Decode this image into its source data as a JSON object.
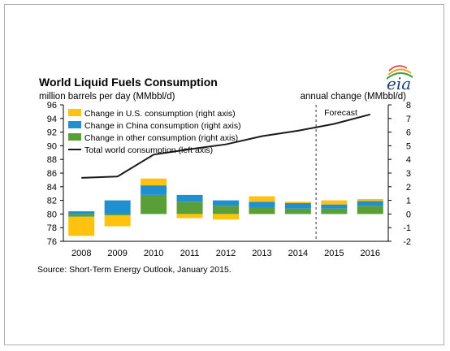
{
  "logo_text": "eia",
  "source": "Source: Short-Term Energy Outlook, January 2015.",
  "forecast_label": "Forecast",
  "colors": {
    "us": "#ffc20e",
    "china": "#1f8fd0",
    "other": "#5a9e3a",
    "total": "#1a1a1a",
    "logo": "#1a3e78"
  },
  "chart_data": {
    "type": "bar",
    "title": "World Liquid Fuels Consumption",
    "left_axis_label": "million barrels per day (MMbbl/d)",
    "right_axis_label": "annual change (MMbbl/d)",
    "categories": [
      "2008",
      "2009",
      "2010",
      "2011",
      "2012",
      "2013",
      "2014",
      "2015",
      "2016"
    ],
    "left_ylim": [
      76,
      96
    ],
    "left_ticks": [
      "96",
      "94",
      "92",
      "90",
      "88",
      "86",
      "84",
      "82",
      "80",
      "78",
      "76"
    ],
    "right_ylim": [
      -2,
      8
    ],
    "right_ticks": [
      "8",
      "7",
      "6",
      "5",
      "4",
      "3",
      "2",
      "1",
      "0",
      "-1",
      "-2"
    ],
    "series": [
      {
        "name": "Change in U.S. consumption (right axis)",
        "key": "us",
        "axis": "right",
        "values": [
          -1.4,
          -0.8,
          0.5,
          -0.3,
          -0.4,
          0.4,
          0.1,
          0.3,
          0.15
        ]
      },
      {
        "name": "Change in China consumption (right axis)",
        "key": "china",
        "axis": "right",
        "values": [
          0.2,
          1.0,
          0.7,
          0.5,
          0.4,
          0.4,
          0.4,
          0.3,
          0.35
        ]
      },
      {
        "name": "Change in other consumption (right axis)",
        "key": "other",
        "axis": "right",
        "values": [
          -0.2,
          -0.1,
          1.4,
          0.9,
          0.6,
          0.5,
          0.4,
          0.4,
          0.6
        ]
      },
      {
        "name": "Total world consumption (left axis)",
        "key": "total",
        "axis": "left",
        "type": "line",
        "values": [
          85.3,
          85.5,
          88.7,
          89.5,
          90.2,
          91.4,
          92.2,
          93.2,
          94.6
        ]
      }
    ],
    "forecast_start": "2015",
    "legend_position": "top-left",
    "grid": false
  }
}
